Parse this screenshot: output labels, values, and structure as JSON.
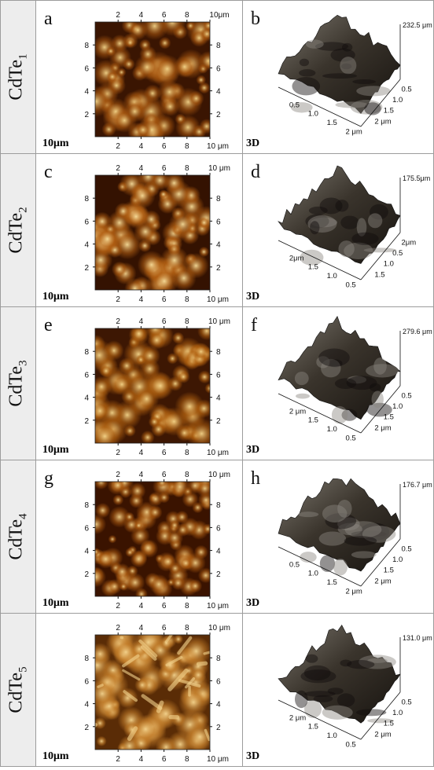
{
  "panels": [
    {
      "sample": "CdTe",
      "sub": "1",
      "letter_2d": "a",
      "letter_3d": "b",
      "scale_label": "10μm",
      "view_label": "3D",
      "ticks_top": [
        "2",
        "4",
        "6",
        "8",
        "10μm"
      ],
      "ticks_bottom": [
        "2",
        "4",
        "6",
        "8",
        "10 μm"
      ],
      "ticks_left": [
        "8",
        "6",
        "4",
        "2"
      ],
      "ticks_right": [
        "8",
        "6",
        "4",
        "2"
      ],
      "height_label": "232.5 μm",
      "axis_a": [
        "0.5",
        "1.0",
        "1.5",
        "2 μm"
      ],
      "axis_b": [
        "2 μm",
        "1.5",
        "1.0",
        "0.5"
      ],
      "colors": {
        "dark": "#3a1502",
        "mid": "#a8570f",
        "light": "#f3d489"
      }
    },
    {
      "sample": "CdTe",
      "sub": "2",
      "letter_2d": "c",
      "letter_3d": "d",
      "scale_label": "10μm",
      "view_label": "3D",
      "ticks_top": [
        "2",
        "4",
        "6",
        "8",
        "10 μm"
      ],
      "ticks_bottom": [
        "2",
        "4",
        "6",
        "8",
        "10 μm"
      ],
      "ticks_left": [
        "8",
        "6",
        "4",
        "2"
      ],
      "ticks_right": [
        "8",
        "6",
        "4",
        "2"
      ],
      "height_label": "175.5μm",
      "axis_a": [
        "2μm",
        "1.5",
        "1.0",
        "0.5"
      ],
      "axis_b": [
        "1.5",
        "1.0",
        "0.5",
        "2μm"
      ],
      "colors": {
        "dark": "#341201",
        "mid": "#b25f12",
        "light": "#f7dd9a"
      }
    },
    {
      "sample": "CdTe",
      "sub": "3",
      "letter_2d": "e",
      "letter_3d": "f",
      "scale_label": "10μm",
      "view_label": "3D",
      "ticks_top": [
        "2",
        "4",
        "6",
        "8",
        "10 μm"
      ],
      "ticks_bottom": [
        "2",
        "4",
        "6",
        "8",
        "10 μm"
      ],
      "ticks_left": [
        "8",
        "6",
        "4",
        "2"
      ],
      "ticks_right": [
        "8",
        "6",
        "4",
        "2"
      ],
      "height_label": "279.6 μm",
      "axis_a": [
        "2 μm",
        "1.5",
        "1.0",
        "0.5"
      ],
      "axis_b": [
        "2 μm",
        "1.5",
        "1.0",
        "0.5"
      ],
      "colors": {
        "dark": "#3d1703",
        "mid": "#b0600f",
        "light": "#f5d58a"
      }
    },
    {
      "sample": "CdTe",
      "sub": "4",
      "letter_2d": "g",
      "letter_3d": "h",
      "scale_label": "10μm",
      "view_label": "3D",
      "ticks_top": [
        "2",
        "4",
        "6",
        "8",
        "10 μm"
      ],
      "ticks_bottom": [
        "2",
        "4",
        "6",
        "8",
        "10 μm"
      ],
      "ticks_left": [
        "8",
        "6",
        "4",
        "2"
      ],
      "ticks_right": [
        "8",
        "6",
        "4",
        "2"
      ],
      "height_label": "176.7 μm",
      "axis_a": [
        "0.5",
        "1.0",
        "1.5",
        "2 μm"
      ],
      "axis_b": [
        "2 μm",
        "1.5",
        "1.0",
        "0.5"
      ],
      "colors": {
        "dark": "#3a1300",
        "mid": "#aa5a10",
        "light": "#f1d08a"
      }
    },
    {
      "sample": "CdTe",
      "sub": "5",
      "letter_2d": "",
      "letter_3d": "",
      "scale_label": "10μm",
      "view_label": "3D",
      "ticks_top": [
        "2",
        "4",
        "6",
        "8",
        "10 μm"
      ],
      "ticks_bottom": [
        "2",
        "4",
        "6",
        "8",
        "10 μm"
      ],
      "ticks_left": [
        "8",
        "6",
        "4",
        "2"
      ],
      "ticks_right": [
        "8",
        "6",
        "4",
        "2"
      ],
      "height_label": "131.0 μm",
      "axis_a": [
        "2 μm",
        "1.5",
        "1.0",
        "0.5"
      ],
      "axis_b": [
        "2 μm",
        "1.5",
        "1.0",
        "0.5"
      ],
      "colors": {
        "dark": "#5a2c06",
        "mid": "#c47e2a",
        "light": "#f4d48e"
      }
    }
  ]
}
